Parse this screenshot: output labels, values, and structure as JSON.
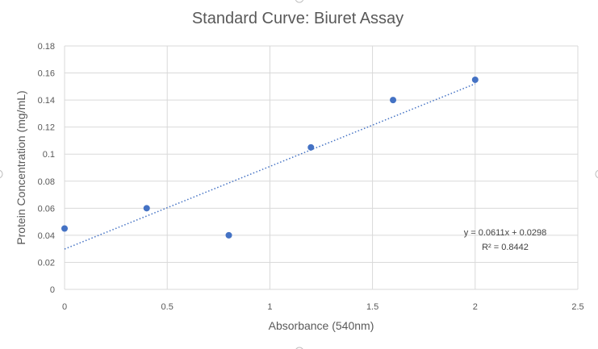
{
  "chart_data": {
    "type": "scatter",
    "title": "Standard Curve: Biuret Assay",
    "xlabel": "Absorbance (540nm)",
    "ylabel": "Protein Concentration (mg/mL)",
    "xlim": [
      0,
      2.5
    ],
    "ylim": [
      0,
      0.18
    ],
    "x_ticks": [
      0,
      0.5,
      1,
      1.5,
      2,
      2.5
    ],
    "x_tick_labels": [
      "0",
      "0.5",
      "1",
      "1.5",
      "2",
      "2.5"
    ],
    "y_ticks": [
      0,
      0.02,
      0.04,
      0.06,
      0.08,
      0.1,
      0.12,
      0.14,
      0.16,
      0.18
    ],
    "y_tick_labels": [
      "0",
      "0.02",
      "0.04",
      "0.06",
      "0.08",
      "0.1",
      "0.12",
      "0.14",
      "0.16",
      "0.18"
    ],
    "grid": true,
    "series": [
      {
        "points": [
          {
            "x": 0,
            "y": 0.045
          },
          {
            "x": 0.4,
            "y": 0.06
          },
          {
            "x": 0.8,
            "y": 0.04
          },
          {
            "x": 1.2,
            "y": 0.105
          },
          {
            "x": 1.6,
            "y": 0.14
          },
          {
            "x": 2.0,
            "y": 0.155
          }
        ],
        "color": "#4472c4"
      }
    ],
    "trendline": {
      "type": "linear",
      "style": "dotted",
      "slope": 0.0611,
      "intercept": 0.0298,
      "x_range": [
        0,
        2.0
      ],
      "color": "#4472c4",
      "equation_label": "y = 0.0611x + 0.0298",
      "r2_label": "R² = 0.8442"
    },
    "colors": {
      "gridline": "#d9d9d9",
      "text": "#595959"
    }
  }
}
